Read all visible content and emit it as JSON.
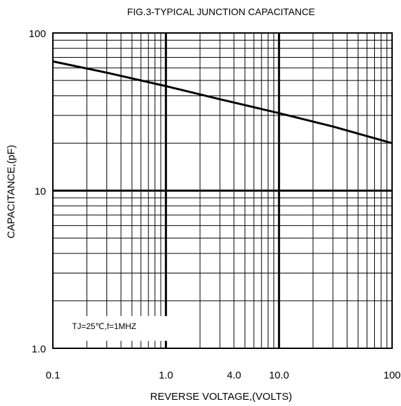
{
  "chart_data": {
    "type": "line",
    "title": "FIG.3-TYPICAL JUNCTION CAPACITANCE",
    "xlabel": "REVERSE VOLTAGE,(VOLTS)",
    "ylabel": "CAPACITANCE,(pF)",
    "x_scale": "log",
    "y_scale": "log",
    "xlim": [
      0.1,
      100
    ],
    "ylim": [
      1.0,
      100
    ],
    "x_tick_labels": [
      {
        "value": 0.1,
        "label": "0.1"
      },
      {
        "value": 1.0,
        "label": "1.0"
      },
      {
        "value": 4.0,
        "label": "4.0"
      },
      {
        "value": 10.0,
        "label": "10.0"
      },
      {
        "value": 100,
        "label": "100"
      }
    ],
    "y_tick_labels": [
      {
        "value": 100,
        "label": "100"
      },
      {
        "value": 10,
        "label": "10"
      },
      {
        "value": 1.0,
        "label": "1.0"
      }
    ],
    "grid": true,
    "series": [
      {
        "x": [
          0.1,
          0.3,
          1.0,
          3.0,
          10.0,
          30.0,
          100
        ],
        "y": [
          66,
          56,
          46,
          38,
          31,
          25.5,
          20
        ]
      }
    ],
    "annotations": [
      {
        "text": "TJ=25℃,f=1MHZ",
        "x": 0.1,
        "y": 1.6
      }
    ]
  }
}
